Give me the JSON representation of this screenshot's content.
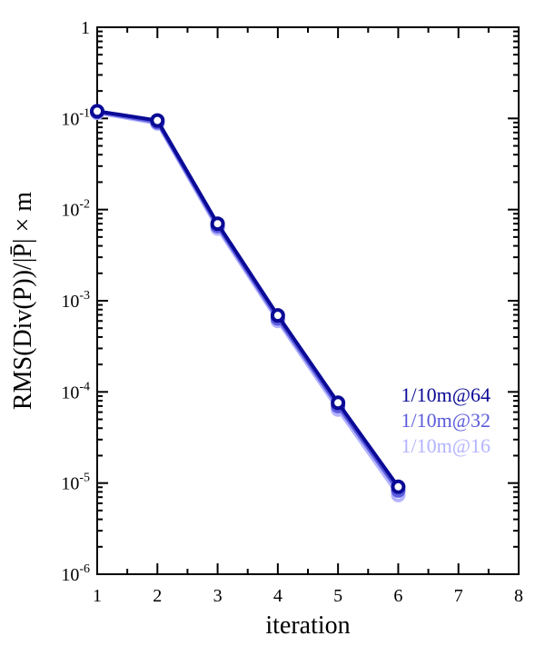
{
  "chart_data": {
    "type": "line",
    "xlabel": "iteration",
    "ylabel": "RMS(Div(P))/|P̄| × m",
    "x": [
      1,
      2,
      3,
      4,
      5,
      6
    ],
    "xlim": [
      1,
      8
    ],
    "xticks": [
      "1",
      "2",
      "3",
      "4",
      "5",
      "6",
      "7",
      "8"
    ],
    "ylim": [
      1e-06,
      1
    ],
    "yscale": "log",
    "yticks": [
      {
        "base": "1",
        "exp": ""
      },
      {
        "base": "10",
        "exp": "-1"
      },
      {
        "base": "10",
        "exp": "-2"
      },
      {
        "base": "10",
        "exp": "-3"
      },
      {
        "base": "10",
        "exp": "-4"
      },
      {
        "base": "10",
        "exp": "-5"
      },
      {
        "base": "10",
        "exp": "-6"
      }
    ],
    "grid": false,
    "legend_position": "right",
    "series": [
      {
        "name": "1/10m@16",
        "color": "#b3b3ff",
        "values": [
          0.115,
          0.088,
          0.0062,
          0.0006,
          6.4e-05,
          7.4e-06
        ]
      },
      {
        "name": "1/10m@32",
        "color": "#5b5bdd",
        "values": [
          0.118,
          0.091,
          0.0066,
          0.00064,
          7e-05,
          8.3e-06
        ]
      },
      {
        "name": "1/10m@64",
        "color": "#0a0a96",
        "values": [
          0.12,
          0.095,
          0.007,
          0.00069,
          7.6e-05,
          9.1e-06
        ]
      }
    ]
  }
}
